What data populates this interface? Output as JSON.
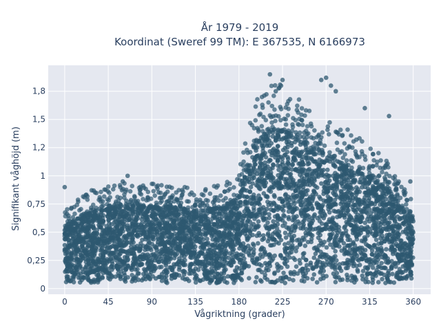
{
  "chart_data": {
    "type": "scatter",
    "title_lines": [
      "År 1979 - 2019",
      "Koordinat (Sweref 99 TM): E 367535, N 6166973"
    ],
    "xlabel": "Vågriktning (grader)",
    "ylabel": "Signifikant våghöjd (m)",
    "xlim": [
      -17,
      378
    ],
    "ylim": [
      -0.05,
      1.98
    ],
    "xticks": [
      0,
      45,
      90,
      135,
      180,
      225,
      270,
      315,
      360
    ],
    "xtick_labels": [
      "0",
      "45",
      "90",
      "135",
      "180",
      "225",
      "270",
      "315",
      "360"
    ],
    "yticks": [
      0,
      0.25,
      0.5,
      0.75,
      1,
      1.25,
      1.5,
      1.75
    ],
    "ytick_labels": [
      "0",
      "0,25",
      "0,5",
      "0,75",
      "1",
      "1,2",
      "1,5",
      "1,8"
    ],
    "marker_color": "#2e5870",
    "plot_bg": "#e5e8f0",
    "grid": true,
    "envelope": {
      "x": [
        0,
        10,
        20,
        30,
        45,
        60,
        75,
        90,
        105,
        120,
        135,
        150,
        165,
        175,
        180,
        185,
        190,
        195,
        200,
        210,
        220,
        230,
        245,
        260,
        275,
        290,
        300,
        310,
        320,
        330,
        340,
        350,
        360
      ],
      "y_upper_dense": [
        0.55,
        0.6,
        0.65,
        0.68,
        0.7,
        0.72,
        0.72,
        0.72,
        0.72,
        0.7,
        0.68,
        0.7,
        0.72,
        0.76,
        0.82,
        0.95,
        1.1,
        1.25,
        1.32,
        1.38,
        1.4,
        1.38,
        1.28,
        1.2,
        1.15,
        1.1,
        1.05,
        1.0,
        0.95,
        0.9,
        0.8,
        0.7,
        0.6
      ],
      "y_lower": 0.05
    },
    "notable_points": [
      {
        "x": 0,
        "y": 0.9
      },
      {
        "x": 60,
        "y": 0.95
      },
      {
        "x": 65,
        "y": 1.0
      },
      {
        "x": 212,
        "y": 1.9
      },
      {
        "x": 225,
        "y": 1.85
      },
      {
        "x": 218,
        "y": 1.75
      },
      {
        "x": 265,
        "y": 1.85
      },
      {
        "x": 270,
        "y": 1.87
      },
      {
        "x": 275,
        "y": 1.8
      },
      {
        "x": 280,
        "y": 1.75
      },
      {
        "x": 310,
        "y": 1.6
      },
      {
        "x": 335,
        "y": 1.53
      },
      {
        "x": 357,
        "y": 0.95
      }
    ]
  }
}
